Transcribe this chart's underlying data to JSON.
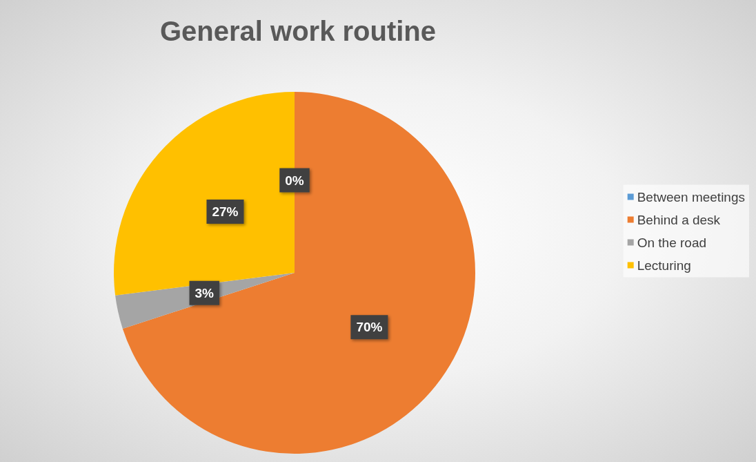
{
  "chart_data": {
    "type": "pie",
    "title": "General work routine",
    "categories": [
      "Between meetings",
      "Behind a desk",
      "On the road",
      "Lecturing"
    ],
    "values": [
      0,
      70,
      3,
      27
    ],
    "colors": [
      "#5b9bd5",
      "#ed7d31",
      "#a5a5a5",
      "#ffc000"
    ],
    "value_labels": [
      "0%",
      "70%",
      "3%",
      "27%"
    ],
    "legend": "right"
  }
}
